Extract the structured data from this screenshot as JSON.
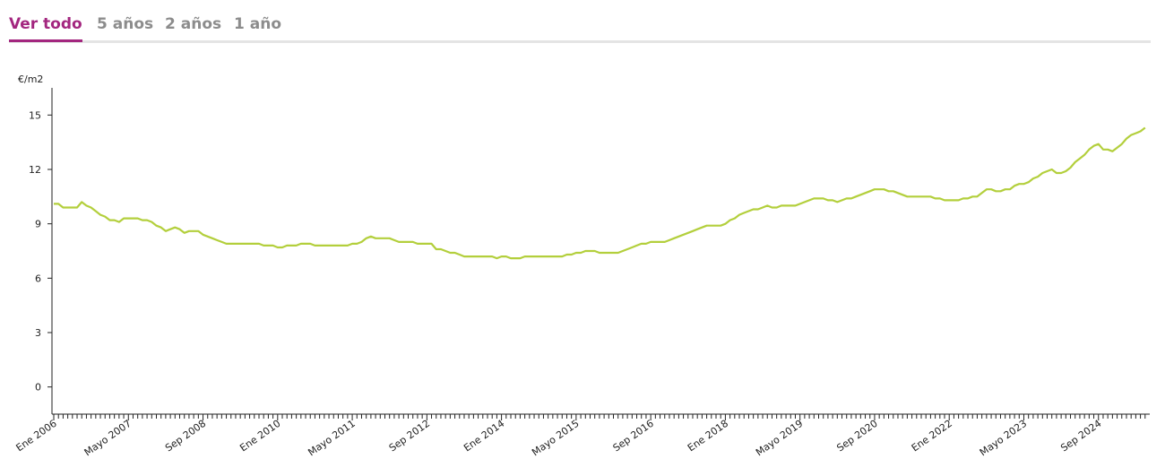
{
  "tabs": [
    "Ver todo",
    "5 años",
    "2 años",
    "1 año"
  ],
  "active_tab": 0,
  "chart_data": {
    "type": "line",
    "y_label": "€/m2",
    "categories": [
      "Ene 2006",
      null,
      null,
      null,
      null,
      null,
      null,
      null,
      null,
      null,
      null,
      null,
      null,
      null,
      null,
      null,
      "Mayo 2007",
      null,
      null,
      null,
      null,
      null,
      null,
      null,
      null,
      null,
      null,
      null,
      null,
      null,
      null,
      null,
      "Sep 2008",
      null,
      null,
      null,
      null,
      null,
      null,
      null,
      null,
      null,
      null,
      null,
      null,
      null,
      null,
      null,
      "Ene 2010",
      null,
      null,
      null,
      null,
      null,
      null,
      null,
      null,
      null,
      null,
      null,
      null,
      null,
      null,
      null,
      "Mayo 2011",
      null,
      null,
      null,
      null,
      null,
      null,
      null,
      null,
      null,
      null,
      null,
      null,
      null,
      null,
      null,
      "Sep 2012",
      null,
      null,
      null,
      null,
      null,
      null,
      null,
      null,
      null,
      null,
      null,
      null,
      null,
      null,
      null,
      "Ene 2014",
      null,
      null,
      null,
      null,
      null,
      null,
      null,
      null,
      null,
      null,
      null,
      null,
      null,
      null,
      null,
      "Mayo 2015",
      null,
      null,
      null,
      null,
      null,
      null,
      null,
      null,
      null,
      null,
      null,
      null,
      null,
      null,
      null,
      "Sep 2016",
      null,
      null,
      null,
      null,
      null,
      null,
      null,
      null,
      null,
      null,
      null,
      null,
      null,
      null,
      null,
      "Ene 2018",
      null,
      null,
      null,
      null,
      null,
      null,
      null,
      null,
      null,
      null,
      null,
      null,
      null,
      null,
      null,
      "Mayo 2019",
      null,
      null,
      null,
      null,
      null,
      null,
      null,
      null,
      null,
      null,
      null,
      null,
      null,
      null,
      null,
      "Sep 2020",
      null,
      null,
      null,
      null,
      null,
      null,
      null,
      null,
      null,
      null,
      null,
      null,
      null,
      null,
      null,
      "Ene 2022",
      null,
      null,
      null,
      null,
      null,
      null,
      null,
      null,
      null,
      null,
      null,
      null,
      null,
      null,
      null,
      "Mayo 2023",
      null,
      null,
      null,
      null,
      null,
      null,
      null,
      null,
      null,
      null,
      null,
      null,
      null,
      null,
      null,
      "Sep 2024",
      null,
      null,
      null,
      null,
      null,
      null,
      null,
      null,
      null,
      null
    ],
    "values": [
      10.1,
      10.1,
      9.9,
      9.9,
      9.9,
      9.9,
      10.2,
      10.0,
      9.9,
      9.7,
      9.5,
      9.4,
      9.2,
      9.2,
      9.1,
      9.3,
      9.3,
      9.3,
      9.3,
      9.2,
      9.2,
      9.1,
      8.9,
      8.8,
      8.6,
      8.7,
      8.8,
      8.7,
      8.5,
      8.6,
      8.6,
      8.6,
      8.4,
      8.3,
      8.2,
      8.1,
      8.0,
      7.9,
      7.9,
      7.9,
      7.9,
      7.9,
      7.9,
      7.9,
      7.9,
      7.8,
      7.8,
      7.8,
      7.7,
      7.7,
      7.8,
      7.8,
      7.8,
      7.9,
      7.9,
      7.9,
      7.8,
      7.8,
      7.8,
      7.8,
      7.8,
      7.8,
      7.8,
      7.8,
      7.9,
      7.9,
      8.0,
      8.2,
      8.3,
      8.2,
      8.2,
      8.2,
      8.2,
      8.1,
      8.0,
      8.0,
      8.0,
      8.0,
      7.9,
      7.9,
      7.9,
      7.9,
      7.6,
      7.6,
      7.5,
      7.4,
      7.4,
      7.3,
      7.2,
      7.2,
      7.2,
      7.2,
      7.2,
      7.2,
      7.2,
      7.1,
      7.2,
      7.2,
      7.1,
      7.1,
      7.1,
      7.2,
      7.2,
      7.2,
      7.2,
      7.2,
      7.2,
      7.2,
      7.2,
      7.2,
      7.3,
      7.3,
      7.4,
      7.4,
      7.5,
      7.5,
      7.5,
      7.4,
      7.4,
      7.4,
      7.4,
      7.4,
      7.5,
      7.6,
      7.7,
      7.8,
      7.9,
      7.9,
      8.0,
      8.0,
      8.0,
      8.0,
      8.1,
      8.2,
      8.3,
      8.4,
      8.5,
      8.6,
      8.7,
      8.8,
      8.9,
      8.9,
      8.9,
      8.9,
      9.0,
      9.2,
      9.3,
      9.5,
      9.6,
      9.7,
      9.8,
      9.8,
      9.9,
      10.0,
      9.9,
      9.9,
      10.0,
      10.0,
      10.0,
      10.0,
      10.1,
      10.2,
      10.3,
      10.4,
      10.4,
      10.4,
      10.3,
      10.3,
      10.2,
      10.3,
      10.4,
      10.4,
      10.5,
      10.6,
      10.7,
      10.8,
      10.9,
      10.9,
      10.9,
      10.8,
      10.8,
      10.7,
      10.6,
      10.5,
      10.5,
      10.5,
      10.5,
      10.5,
      10.5,
      10.4,
      10.4,
      10.3,
      10.3,
      10.3,
      10.3,
      10.4,
      10.4,
      10.5,
      10.5,
      10.7,
      10.9,
      10.9,
      10.8,
      10.8,
      10.9,
      10.9,
      11.1,
      11.2,
      11.2,
      11.3,
      11.5,
      11.6,
      11.8,
      11.9,
      12.0,
      11.8,
      11.8,
      11.9,
      12.1,
      12.4,
      12.6,
      12.8,
      13.1,
      13.3,
      13.4,
      13.1,
      13.1,
      13.0,
      13.2,
      13.4,
      13.7,
      13.9,
      14.0,
      14.1,
      14.3
    ],
    "color": "#b3cf3c",
    "ylim": [
      -1.5,
      16.5
    ],
    "yticks": [
      0,
      3,
      6,
      9,
      12,
      15
    ],
    "grid": false
  }
}
